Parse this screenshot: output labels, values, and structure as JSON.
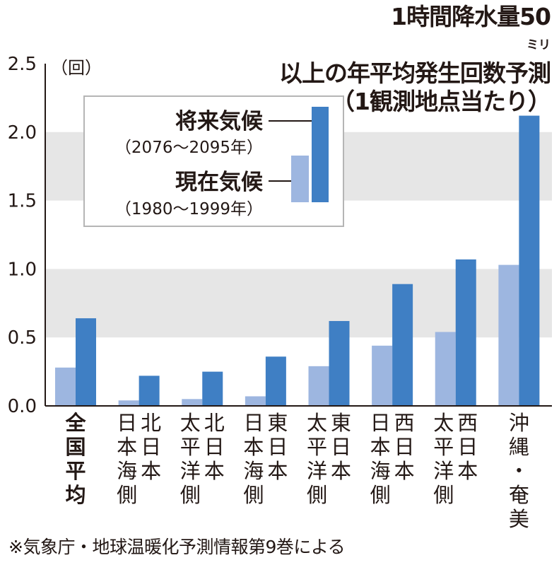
{
  "title": {
    "line1_before": "1時間降水量50",
    "line1_unit": "ミリ",
    "line1_after": "以上の年平均発生回数予測",
    "line2": "（1観測地点当たり）"
  },
  "footer": "※気象庁・地球温暖化予測情報第9巻による",
  "chart_data": {
    "type": "bar",
    "unit_label": "（回）",
    "ylim": [
      0,
      2.5
    ],
    "yticks": [
      "0.0",
      "0.5",
      "1.0",
      "1.5",
      "2.0",
      "2.5"
    ],
    "grid": "alternating horizontal bands",
    "legend_position": "top-left",
    "categories": [
      "全国平均",
      "北日本日本海側",
      "北日本太平洋側",
      "東日本日本海側",
      "東日本太平洋側",
      "西日本日本海側",
      "西日本太平洋側",
      "沖縄・奄美"
    ],
    "category_columns": [
      [
        "全国平均"
      ],
      [
        "日本海側",
        "北日本"
      ],
      [
        "太平洋側",
        "北日本"
      ],
      [
        "日本海側",
        "東日本"
      ],
      [
        "太平洋側",
        "東日本"
      ],
      [
        "日本海側",
        "西日本"
      ],
      [
        "太平洋側",
        "西日本"
      ],
      [
        "沖縄・奄美"
      ]
    ],
    "series": [
      {
        "name": "現在気候",
        "period": "（1980～1999年）",
        "color": "#9db6e0",
        "values": [
          0.28,
          0.04,
          0.05,
          0.07,
          0.29,
          0.44,
          0.54,
          1.03
        ]
      },
      {
        "name": "将来気候",
        "period": "（2076～2095年）",
        "color": "#3f7fc4",
        "values": [
          0.64,
          0.22,
          0.25,
          0.36,
          0.62,
          0.89,
          1.07,
          2.12
        ]
      }
    ]
  }
}
